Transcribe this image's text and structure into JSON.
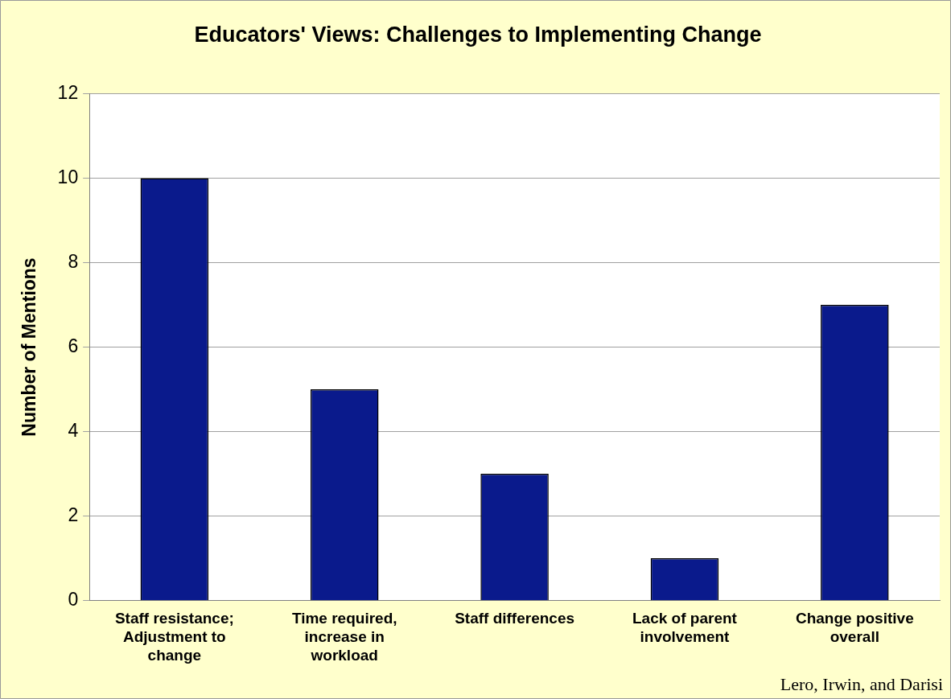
{
  "chart_data": {
    "type": "bar",
    "title": "Educators' Views: Challenges to Implementing Change",
    "ylabel": "Number of Mentions",
    "categories": [
      "Staff resistance; Adjustment to change",
      "Time required, increase in workload",
      "Staff differences",
      "Lack of parent involvement",
      "Change positive overall"
    ],
    "values": [
      10,
      5,
      3,
      1,
      7
    ],
    "color": "#0a1a8c",
    "ylim": [
      0,
      12
    ],
    "yticks": [
      0,
      2,
      4,
      6,
      8,
      10,
      12
    ],
    "grid": "y",
    "legend": false,
    "annotations": [
      "Lero, Irwin, and Darisi"
    ]
  }
}
